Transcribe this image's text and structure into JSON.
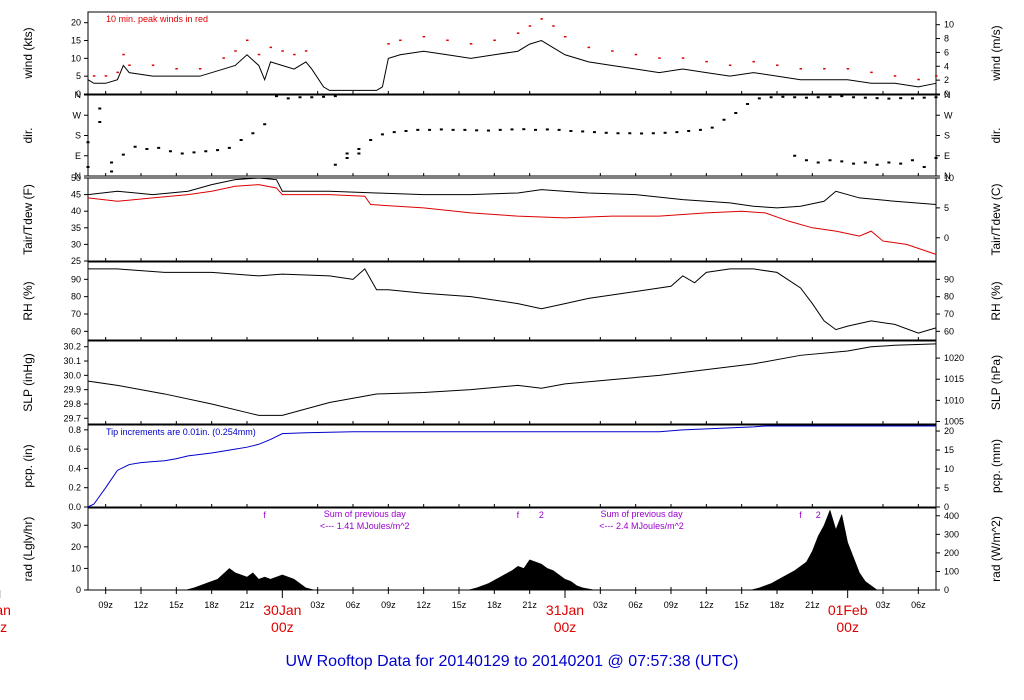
{
  "title": "UW Rooftop Data for 20140129  to  20140201 @ 07:57:38  (UTC)",
  "colors": {
    "black": "#000000",
    "red": "#dd0000",
    "blue": "#0000cc",
    "purple": "#9900cc",
    "day_label": "#dd0000"
  },
  "x_axis": {
    "range_hours": [
      7.5,
      79.5
    ],
    "hour_ticks": [
      {
        "h": 9,
        "label": "09z"
      },
      {
        "h": 12,
        "label": "12z"
      },
      {
        "h": 15,
        "label": "15z"
      },
      {
        "h": 18,
        "label": "18z"
      },
      {
        "h": 21,
        "label": "21z"
      },
      {
        "h": 27,
        "label": "03z"
      },
      {
        "h": 30,
        "label": "06z"
      },
      {
        "h": 33,
        "label": "09z"
      },
      {
        "h": 36,
        "label": "12z"
      },
      {
        "h": 39,
        "label": "15z"
      },
      {
        "h": 42,
        "label": "18z"
      },
      {
        "h": 45,
        "label": "21z"
      },
      {
        "h": 51,
        "label": "03z"
      },
      {
        "h": 54,
        "label": "06z"
      },
      {
        "h": 57,
        "label": "09z"
      },
      {
        "h": 60,
        "label": "12z"
      },
      {
        "h": 63,
        "label": "15z"
      },
      {
        "h": 66,
        "label": "18z"
      },
      {
        "h": 69,
        "label": "21z"
      },
      {
        "h": 75,
        "label": "03z"
      },
      {
        "h": 78,
        "label": "06z"
      }
    ],
    "day_labels": [
      {
        "h": 0,
        "date": "Jan",
        "time": "0z"
      },
      {
        "h": 24,
        "date": "30Jan",
        "time": "00z"
      },
      {
        "h": 48,
        "date": "31Jan",
        "time": "00z"
      },
      {
        "h": 72,
        "date": "01Feb",
        "time": "00z"
      }
    ]
  },
  "chart_data": [
    {
      "type": "line",
      "id": "wind",
      "ylabel": "wind (kts)",
      "ylabel_right": "wind (m/s)",
      "ylim": [
        0,
        23
      ],
      "left_ticks": [
        0,
        5,
        10,
        15,
        20
      ],
      "right_ticks": [
        0,
        2,
        4,
        6,
        8,
        10
      ],
      "right_factor": 1.944,
      "annotation": "10 min. peak winds in red",
      "series": [
        {
          "name": "wind speed",
          "color": "black",
          "x": [
            7.5,
            8,
            9,
            10,
            10.5,
            11,
            13,
            15,
            17,
            19,
            20,
            21,
            22,
            22.5,
            23,
            24,
            25,
            26,
            26.5,
            27.5,
            28,
            29,
            30,
            31,
            32,
            32.5,
            33,
            34,
            36,
            38,
            40,
            42,
            44,
            45,
            46,
            47,
            48,
            50,
            52,
            54,
            56,
            58,
            60,
            62,
            64,
            66,
            68,
            70,
            72,
            74,
            76,
            78,
            79.5
          ],
          "y": [
            4,
            3,
            3,
            4,
            8,
            6,
            5,
            5,
            5,
            7,
            8,
            11,
            8,
            4,
            9,
            8,
            7,
            9,
            7,
            2,
            1,
            1,
            1,
            1,
            1,
            2,
            10,
            11,
            12,
            11,
            10,
            11,
            12,
            14,
            15,
            13,
            11,
            9,
            8,
            7,
            6,
            7,
            6,
            5,
            6,
            5,
            4,
            4,
            4,
            3,
            3,
            2,
            3
          ]
        },
        {
          "name": "10 min. peak",
          "color": "red",
          "x": [
            8,
            9,
            10,
            10.5,
            11,
            13,
            15,
            17,
            19,
            20,
            21,
            22,
            23,
            24,
            25,
            26,
            33,
            34,
            36,
            38,
            40,
            42,
            44,
            45,
            46,
            47,
            48,
            50,
            52,
            54,
            56,
            58,
            60,
            62,
            64,
            66,
            68,
            70,
            72,
            74,
            76,
            78,
            79.5
          ],
          "y": [
            5,
            5,
            6,
            11,
            8,
            8,
            7,
            7,
            10,
            12,
            15,
            11,
            13,
            12,
            11,
            12,
            14,
            15,
            16,
            15,
            14,
            15,
            17,
            19,
            21,
            19,
            16,
            13,
            12,
            11,
            10,
            10,
            9,
            8,
            9,
            8,
            7,
            7,
            7,
            6,
            5,
            4,
            5
          ]
        }
      ]
    },
    {
      "type": "scatter",
      "id": "dir",
      "ylabel": "dir.",
      "ylabel_right": "dir.",
      "ylim": [
        0,
        360
      ],
      "cat_ticks": [
        {
          "v": 0,
          "label": "N"
        },
        {
          "v": 90,
          "label": "E"
        },
        {
          "v": 180,
          "label": "S"
        },
        {
          "v": 270,
          "label": "W"
        },
        {
          "v": 360,
          "label": "N"
        }
      ],
      "series": [
        {
          "name": "wind direction",
          "color": "black",
          "x": [
            7.5,
            8.5,
            9.5,
            10.5,
            11.5,
            12.5,
            13.5,
            14.5,
            15.5,
            16.5,
            17.5,
            18.5,
            19.5,
            20.5,
            21.5,
            22.5,
            23.5,
            24.5,
            25.5,
            26.5,
            27.5,
            28.5,
            29.5,
            30.5,
            31.5,
            32.5,
            33.5,
            34.5,
            35.5,
            36.5,
            37.5,
            38.5,
            39.5,
            40.5,
            41.5,
            42.5,
            43.5,
            44.5,
            45.5,
            46.5,
            47.5,
            48.5,
            49.5,
            50.5,
            51.5,
            52.5,
            53.5,
            54.5,
            55.5,
            56.5,
            57.5,
            58.5,
            59.5,
            60.5,
            61.5,
            62.5,
            63.5,
            64.5,
            65.5,
            66.5,
            67.5,
            68.5,
            69.5,
            70.5,
            71.5,
            72.5,
            73.5,
            74.5,
            75.5,
            76.5,
            77.5,
            78.5,
            79.5
          ],
          "y": [
            150,
            300,
            60,
            95,
            130,
            120,
            125,
            110,
            100,
            105,
            110,
            115,
            125,
            160,
            190,
            230,
            355,
            345,
            350,
            350,
            352,
            355,
            100,
            120,
            160,
            185,
            195,
            200,
            205,
            205,
            207,
            205,
            205,
            203,
            202,
            205,
            207,
            208,
            205,
            207,
            205,
            200,
            198,
            195,
            192,
            190,
            190,
            189,
            190,
            192,
            195,
            200,
            205,
            215,
            250,
            280,
            320,
            345,
            350,
            352,
            350,
            348,
            350,
            352,
            355,
            350,
            348,
            346,
            344,
            346,
            345,
            348,
            350
          ]
        },
        {
          "name": "wind direction (second cluster)",
          "color": "black",
          "x": [
            7.5,
            8.5,
            9.5,
            28.5,
            29.5,
            30.5,
            67.5,
            68.5,
            69.5,
            70.5,
            71.5,
            72.5,
            73.5,
            74.5,
            75.5,
            76.5,
            77.5,
            78.5,
            79.5
          ],
          "y": [
            40,
            240,
            20,
            50,
            80,
            100,
            90,
            70,
            60,
            70,
            65,
            55,
            60,
            50,
            60,
            55,
            70,
            40,
            80
          ]
        }
      ]
    },
    {
      "type": "line",
      "id": "temp",
      "ylabel": "Tair/Tdew (F)",
      "ylabel_right": "Tair/Tdew (C)",
      "ylim": [
        25,
        50
      ],
      "left_ticks": [
        25,
        30,
        35,
        40,
        45,
        50
      ],
      "right_ticks_c": [
        0,
        5,
        10
      ],
      "series": [
        {
          "name": "Tair",
          "color": "black",
          "x": [
            7.5,
            10,
            13,
            16,
            18,
            20,
            22,
            23.5,
            24,
            28,
            32,
            36,
            40,
            44,
            46,
            50,
            54,
            58,
            62,
            64,
            66,
            68,
            70,
            71,
            73,
            76,
            79.5
          ],
          "y": [
            45,
            46,
            45,
            46,
            48,
            49.5,
            50,
            49.5,
            46,
            46,
            45.5,
            45,
            45,
            45.5,
            46.5,
            45.5,
            45,
            43.5,
            42.5,
            41.5,
            41,
            41.5,
            43,
            46,
            44,
            43,
            42
          ]
        },
        {
          "name": "Tdew",
          "color": "red",
          "x": [
            7.5,
            10,
            13,
            16,
            18,
            20,
            22,
            23.5,
            24,
            28,
            31,
            31.5,
            36,
            40,
            44,
            48,
            52,
            56,
            60,
            63,
            65,
            67,
            69,
            71,
            73,
            74,
            75,
            77,
            79.5
          ],
          "y": [
            44,
            43,
            44,
            45,
            46,
            47.5,
            48,
            47,
            45,
            45,
            44.5,
            42,
            41,
            39.5,
            38.5,
            38,
            38.5,
            38.5,
            39.5,
            40,
            39.5,
            37,
            35,
            34,
            32.5,
            34,
            31,
            30,
            27
          ]
        }
      ]
    },
    {
      "type": "line",
      "id": "rh",
      "ylabel": "RH (%)",
      "ylabel_right": "RH (%)",
      "ylim": [
        55,
        100
      ],
      "left_ticks": [
        60,
        70,
        80,
        90
      ],
      "right_ticks": [
        60,
        70,
        80,
        90
      ],
      "series": [
        {
          "name": "RH",
          "color": "black",
          "x": [
            7.5,
            10,
            14,
            18,
            22,
            24,
            28,
            30,
            31,
            32,
            33,
            36,
            40,
            44,
            46,
            48,
            50,
            54,
            57,
            58,
            59,
            60,
            62,
            64,
            66,
            68,
            69,
            70,
            71,
            72,
            74,
            76,
            78,
            79.5
          ],
          "y": [
            96,
            96,
            94,
            94,
            92,
            93,
            92,
            90,
            96,
            84,
            84,
            82,
            80,
            76,
            73,
            76,
            79,
            83,
            86,
            92,
            88,
            94,
            96,
            96,
            94,
            85,
            76,
            66,
            61,
            63,
            66,
            64,
            59,
            62
          ]
        }
      ]
    },
    {
      "type": "line",
      "id": "slp",
      "ylabel": "SLP (inHg)",
      "ylabel_right": "SLP (hPa)",
      "ylim": [
        29.66,
        30.24
      ],
      "left_ticks": [
        29.7,
        29.8,
        29.9,
        30.0,
        30.1,
        30.2
      ],
      "right_ticks": [
        1005,
        1010,
        1015,
        1020
      ],
      "series": [
        {
          "name": "SLP",
          "color": "black",
          "x": [
            7.5,
            10,
            14,
            18,
            21,
            22,
            24,
            28,
            32,
            36,
            40,
            44,
            46,
            48,
            52,
            56,
            60,
            64,
            68,
            72,
            74,
            76,
            79.5
          ],
          "y": [
            29.96,
            29.93,
            29.87,
            29.8,
            29.74,
            29.72,
            29.72,
            29.81,
            29.87,
            29.88,
            29.9,
            29.93,
            29.91,
            29.94,
            29.97,
            30.0,
            30.04,
            30.08,
            30.14,
            30.17,
            30.2,
            30.21,
            30.22
          ]
        }
      ]
    },
    {
      "type": "line",
      "id": "pcp",
      "ylabel": "pcp. (in)",
      "ylabel_right": "pcp. (mm)",
      "ylim": [
        0,
        0.85
      ],
      "left_ticks": [
        0.0,
        0.2,
        0.4,
        0.6,
        0.8
      ],
      "right_ticks": [
        0,
        5,
        10,
        15,
        20
      ],
      "annotation": "Tip increments are 0.01in. (0.254mm)",
      "series": [
        {
          "name": "precip",
          "color": "blue",
          "x": [
            7.5,
            8,
            9,
            10,
            11,
            12,
            13,
            14,
            15,
            16,
            18,
            20,
            21,
            22,
            23,
            24,
            26,
            30,
            40,
            50,
            56,
            58,
            60,
            62,
            64,
            65,
            66,
            79.5
          ],
          "y": [
            0,
            0.03,
            0.2,
            0.38,
            0.44,
            0.46,
            0.47,
            0.48,
            0.5,
            0.53,
            0.56,
            0.6,
            0.62,
            0.65,
            0.7,
            0.76,
            0.77,
            0.78,
            0.78,
            0.78,
            0.78,
            0.8,
            0.81,
            0.82,
            0.83,
            0.84,
            0.84,
            0.84
          ]
        }
      ]
    },
    {
      "type": "area",
      "id": "rad",
      "ylabel": "rad (Lgly/hr)",
      "ylabel_right": "rad (W/m^2)",
      "ylim": [
        0,
        38
      ],
      "left_ticks": [
        0,
        10,
        20,
        30
      ],
      "right_ticks": [
        0,
        100,
        200,
        300,
        400
      ],
      "right_factor": 11.63,
      "series": [
        {
          "name": "solar radiation",
          "color": "black",
          "x": [
            15.8,
            16.5,
            17.5,
            18.5,
            19.5,
            20,
            20.5,
            21,
            21.5,
            22,
            22.5,
            23,
            23.5,
            24,
            24.5,
            25,
            25.5,
            26,
            26.7,
            39.8,
            40.5,
            41.5,
            42.5,
            43.5,
            44,
            44.5,
            45,
            45.5,
            46,
            46.5,
            47,
            47.5,
            48,
            48.5,
            49,
            49.5,
            50.5,
            63.8,
            64.5,
            65.5,
            66.5,
            67.5,
            68.5,
            69,
            69.5,
            70,
            70.5,
            71,
            71.5,
            72,
            72.5,
            73,
            73.5,
            74.5
          ],
          "y": [
            0,
            1,
            3,
            5,
            10,
            8,
            7,
            6,
            8,
            5,
            6,
            5,
            6,
            7,
            6,
            5,
            3,
            1,
            0,
            0,
            1,
            3,
            6,
            9,
            11,
            10,
            14,
            13,
            12,
            10,
            9,
            7,
            5,
            4,
            2,
            1,
            0,
            0,
            1,
            3,
            6,
            9,
            13,
            18,
            25,
            30,
            37,
            28,
            35,
            22,
            15,
            8,
            4,
            0
          ]
        }
      ],
      "annotations": [
        {
          "h": 22.5,
          "text": "f"
        },
        {
          "h": 44,
          "text": "f"
        },
        {
          "h": 46,
          "text": "2"
        },
        {
          "h": 68,
          "text": "f"
        },
        {
          "h": 69.5,
          "text": "2"
        }
      ],
      "daily_sums": [
        {
          "h": 31,
          "line1": "Sum of previous day",
          "line2": "<--- 1.41 MJoules/m^2"
        },
        {
          "h": 54.5,
          "line1": "Sum of previous day",
          "line2": "<--- 2.4 MJoules/m^2"
        }
      ]
    }
  ]
}
